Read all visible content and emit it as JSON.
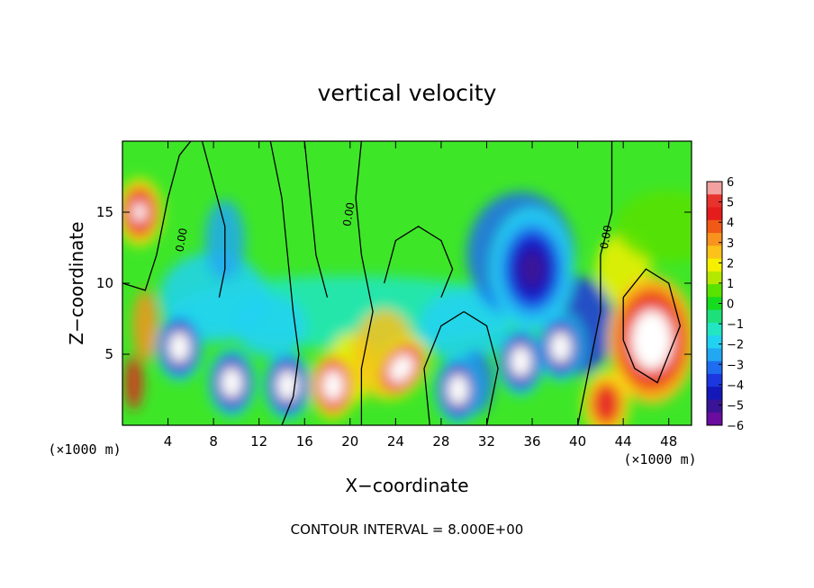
{
  "chart_data": {
    "type": "heatmap",
    "title": "vertical velocity",
    "xlabel": "X−coordinate",
    "ylabel": "Z−coordinate",
    "x_unit_left": "(×1000 m)",
    "x_unit_right": "(×1000 m)",
    "footer": "CONTOUR INTERVAL = 8.000E+00",
    "xlim": [
      0,
      50
    ],
    "ylim": [
      0,
      20
    ],
    "x_ticks": [
      4,
      8,
      12,
      16,
      20,
      24,
      28,
      32,
      36,
      40,
      44,
      48
    ],
    "y_ticks": [
      5,
      10,
      15
    ],
    "contour_label": "0.00",
    "colorbar": {
      "range": [
        -6,
        6
      ],
      "ticks": [
        6,
        5,
        4,
        3,
        2,
        1,
        0,
        -1,
        -2,
        -3,
        -4,
        -5,
        -6
      ],
      "colors": [
        "#f2a0a0",
        "#e8322e",
        "#e51c1c",
        "#f05a16",
        "#f7931e",
        "#fbc21a",
        "#f5f000",
        "#b4e800",
        "#58e200",
        "#16dc1e",
        "#1ee07a",
        "#22e6c2",
        "#22d2f2",
        "#22a8f2",
        "#1e6cf0",
        "#1c36e0",
        "#1418b8",
        "#3a1496",
        "#6a0c9e"
      ]
    },
    "features": [
      {
        "kind": "updraft",
        "x": 1.5,
        "z": 15.0,
        "w": 5.5
      },
      {
        "kind": "downdraft",
        "x": 5.0,
        "z": 5.5,
        "w": -6.5
      },
      {
        "kind": "downdraft",
        "x": 9.6,
        "z": 3.0,
        "w": -6.5
      },
      {
        "kind": "downdraft",
        "x": 14.5,
        "z": 2.8,
        "w": -6.5
      },
      {
        "kind": "updraft",
        "x": 18.5,
        "z": 2.8,
        "w": 6.5
      },
      {
        "kind": "updraft",
        "x": 24.5,
        "z": 4.0,
        "w": 6.5
      },
      {
        "kind": "downdraft",
        "x": 29.5,
        "z": 2.5,
        "w": -6.5
      },
      {
        "kind": "downdraft",
        "x": 35.0,
        "z": 4.5,
        "w": -6.5
      },
      {
        "kind": "downdraft",
        "x": 38.5,
        "z": 5.5,
        "w": -6.5
      },
      {
        "kind": "downdraft",
        "x": 36.0,
        "z": 11.0,
        "w": -4.8
      },
      {
        "kind": "updraft",
        "x": 46.5,
        "z": 6.0,
        "w": 7.0
      },
      {
        "kind": "updraft",
        "x": 42.5,
        "z": 1.5,
        "w": 5.0
      }
    ]
  }
}
